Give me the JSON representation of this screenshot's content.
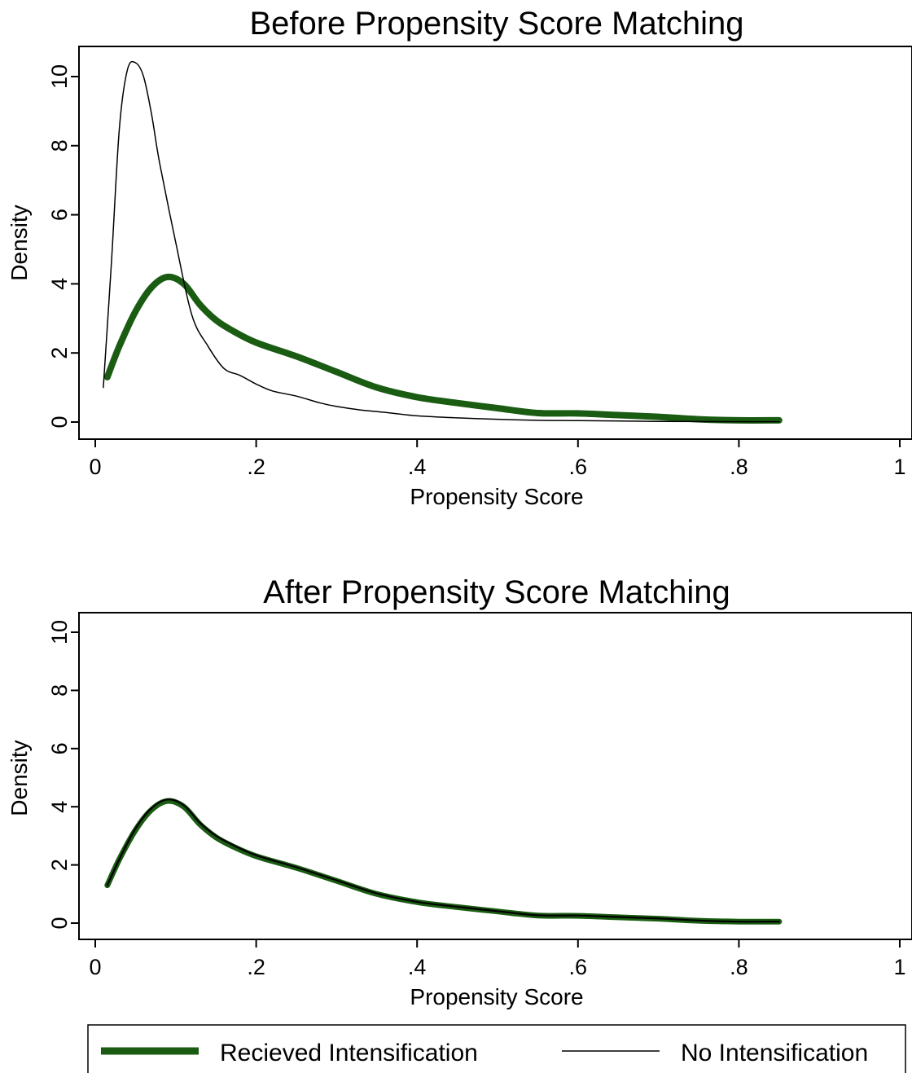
{
  "chart_data": [
    {
      "type": "line",
      "title": "Before Propensity Score Matching",
      "xlabel": "Propensity Score",
      "ylabel": "Density",
      "xlim": [
        0,
        1
      ],
      "ylim": [
        0,
        10
      ],
      "xticks": [
        "0",
        ".2",
        ".4",
        ".6",
        ".8",
        "1"
      ],
      "yticks": [
        "0",
        "2",
        "4",
        "6",
        "8",
        "10"
      ],
      "series": [
        {
          "name": "Recieved Intensification",
          "x": [
            0.015,
            0.03,
            0.05,
            0.07,
            0.09,
            0.11,
            0.13,
            0.15,
            0.17,
            0.2,
            0.25,
            0.3,
            0.35,
            0.4,
            0.45,
            0.5,
            0.55,
            0.6,
            0.65,
            0.7,
            0.75,
            0.8,
            0.85
          ],
          "y": [
            1.3,
            2.2,
            3.2,
            3.9,
            4.2,
            4.0,
            3.4,
            2.95,
            2.65,
            2.3,
            1.9,
            1.45,
            1.0,
            0.72,
            0.55,
            0.4,
            0.26,
            0.25,
            0.2,
            0.15,
            0.08,
            0.05,
            0.05
          ]
        },
        {
          "name": "No Intensification",
          "x": [
            0.01,
            0.02,
            0.03,
            0.04,
            0.05,
            0.06,
            0.07,
            0.08,
            0.1,
            0.12,
            0.14,
            0.16,
            0.18,
            0.2,
            0.22,
            0.25,
            0.28,
            0.3,
            0.33,
            0.36,
            0.4,
            0.45,
            0.5,
            0.55,
            0.6,
            0.7,
            0.85
          ],
          "y": [
            1.0,
            4.6,
            8.5,
            10.2,
            10.4,
            10.0,
            8.9,
            7.5,
            5.2,
            3.1,
            2.2,
            1.55,
            1.35,
            1.1,
            0.9,
            0.75,
            0.55,
            0.45,
            0.35,
            0.28,
            0.18,
            0.12,
            0.08,
            0.05,
            0.04,
            0.02,
            0.01
          ]
        }
      ]
    },
    {
      "type": "line",
      "title": "After Propensity Score Matching",
      "xlabel": "Propensity Score",
      "ylabel": "Density",
      "xlim": [
        0,
        1
      ],
      "ylim": [
        0,
        10
      ],
      "xticks": [
        "0",
        ".2",
        ".4",
        ".6",
        ".8",
        "1"
      ],
      "yticks": [
        "0",
        "2",
        "4",
        "6",
        "8",
        "10"
      ],
      "series": [
        {
          "name": "Recieved Intensification",
          "x": [
            0.015,
            0.03,
            0.05,
            0.07,
            0.09,
            0.11,
            0.13,
            0.15,
            0.17,
            0.2,
            0.25,
            0.3,
            0.35,
            0.4,
            0.45,
            0.5,
            0.55,
            0.6,
            0.65,
            0.7,
            0.75,
            0.8,
            0.85
          ],
          "y": [
            1.3,
            2.2,
            3.2,
            3.9,
            4.2,
            4.0,
            3.4,
            2.95,
            2.65,
            2.3,
            1.9,
            1.45,
            1.0,
            0.72,
            0.55,
            0.4,
            0.26,
            0.25,
            0.2,
            0.15,
            0.08,
            0.05,
            0.05
          ]
        },
        {
          "name": "No Intensification",
          "x": [
            0.015,
            0.03,
            0.05,
            0.07,
            0.09,
            0.11,
            0.13,
            0.15,
            0.17,
            0.2,
            0.25,
            0.3,
            0.35,
            0.4,
            0.45,
            0.5,
            0.55,
            0.6,
            0.65,
            0.7,
            0.75,
            0.8,
            0.85
          ],
          "y": [
            1.3,
            2.2,
            3.25,
            3.95,
            4.25,
            4.05,
            3.45,
            3.0,
            2.7,
            2.33,
            1.92,
            1.47,
            1.02,
            0.73,
            0.56,
            0.41,
            0.27,
            0.26,
            0.21,
            0.16,
            0.09,
            0.05,
            0.05
          ]
        }
      ]
    }
  ],
  "legend": {
    "items": [
      {
        "label": "Recieved Intensification",
        "color": "#1a5c12"
      },
      {
        "label": "No Intensification",
        "color": "#000000"
      }
    ]
  },
  "colors": {
    "treated": "#1a5c12",
    "control": "#000000"
  }
}
